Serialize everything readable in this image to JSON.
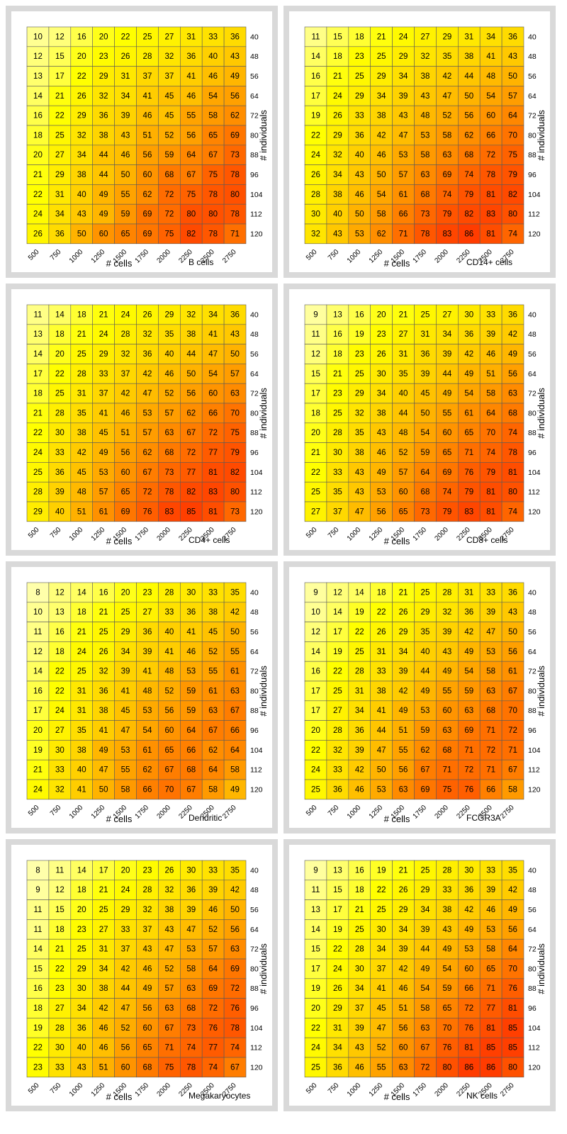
{
  "chart_data": [
    {
      "type": "heatmap",
      "title": "B cells",
      "xlabel": "# cells",
      "ylabel": "# individuals",
      "x": [
        500,
        750,
        1000,
        1250,
        1500,
        1750,
        2000,
        2250,
        2500,
        2750
      ],
      "y": [
        40,
        48,
        56,
        64,
        72,
        80,
        88,
        96,
        104,
        112,
        120
      ],
      "values": [
        [
          10,
          12,
          16,
          20,
          22,
          25,
          27,
          31,
          33,
          36
        ],
        [
          12,
          15,
          20,
          23,
          26,
          28,
          32,
          36,
          40,
          43
        ],
        [
          13,
          17,
          22,
          29,
          31,
          37,
          37,
          41,
          46,
          49
        ],
        [
          14,
          21,
          26,
          32,
          34,
          41,
          45,
          46,
          54,
          56
        ],
        [
          16,
          22,
          29,
          36,
          39,
          46,
          45,
          55,
          58,
          62
        ],
        [
          18,
          25,
          32,
          38,
          43,
          51,
          52,
          56,
          65,
          69
        ],
        [
          20,
          27,
          34,
          44,
          46,
          56,
          59,
          64,
          67,
          73
        ],
        [
          21,
          29,
          38,
          44,
          50,
          60,
          68,
          67,
          75,
          78
        ],
        [
          22,
          31,
          40,
          49,
          55,
          62,
          72,
          75,
          78,
          80
        ],
        [
          24,
          34,
          43,
          49,
          59,
          69,
          72,
          80,
          80,
          78
        ],
        [
          26,
          36,
          50,
          60,
          65,
          69,
          75,
          82,
          78,
          71
        ]
      ]
    },
    {
      "type": "heatmap",
      "title": "CD14+ cells",
      "xlabel": "# cells",
      "ylabel": "# individuals",
      "x": [
        500,
        750,
        1000,
        1250,
        1500,
        1750,
        2000,
        2250,
        2500,
        2750
      ],
      "y": [
        40,
        48,
        56,
        64,
        72,
        80,
        88,
        96,
        104,
        112,
        120
      ],
      "values": [
        [
          11,
          15,
          18,
          21,
          24,
          27,
          29,
          31,
          34,
          36
        ],
        [
          14,
          18,
          23,
          25,
          29,
          32,
          35,
          38,
          41,
          43
        ],
        [
          16,
          21,
          25,
          29,
          34,
          38,
          42,
          44,
          48,
          50
        ],
        [
          17,
          24,
          29,
          34,
          39,
          43,
          47,
          50,
          54,
          57
        ],
        [
          19,
          26,
          33,
          38,
          43,
          48,
          52,
          56,
          60,
          64
        ],
        [
          22,
          29,
          36,
          42,
          47,
          53,
          58,
          62,
          66,
          70
        ],
        [
          24,
          32,
          40,
          46,
          53,
          58,
          63,
          68,
          72,
          75
        ],
        [
          26,
          34,
          43,
          50,
          57,
          63,
          69,
          74,
          78,
          79
        ],
        [
          28,
          38,
          46,
          54,
          61,
          68,
          74,
          79,
          81,
          82
        ],
        [
          30,
          40,
          50,
          58,
          66,
          73,
          79,
          82,
          83,
          80
        ],
        [
          32,
          43,
          53,
          62,
          71,
          78,
          83,
          86,
          81,
          74
        ]
      ]
    },
    {
      "type": "heatmap",
      "title": "CD4+ cells",
      "xlabel": "# cells",
      "ylabel": "# individuals",
      "x": [
        500,
        750,
        1000,
        1250,
        1500,
        1750,
        2000,
        2250,
        2500,
        2750
      ],
      "y": [
        40,
        48,
        56,
        64,
        72,
        80,
        88,
        96,
        104,
        112,
        120
      ],
      "values": [
        [
          11,
          14,
          18,
          21,
          24,
          26,
          29,
          32,
          34,
          36
        ],
        [
          13,
          18,
          21,
          24,
          28,
          32,
          35,
          38,
          41,
          43
        ],
        [
          14,
          20,
          25,
          29,
          32,
          36,
          40,
          44,
          47,
          50
        ],
        [
          17,
          22,
          28,
          33,
          37,
          42,
          46,
          50,
          54,
          57
        ],
        [
          18,
          25,
          31,
          37,
          42,
          47,
          52,
          56,
          60,
          63
        ],
        [
          21,
          28,
          35,
          41,
          46,
          53,
          57,
          62,
          66,
          70
        ],
        [
          22,
          30,
          38,
          45,
          51,
          57,
          63,
          67,
          72,
          75
        ],
        [
          24,
          33,
          42,
          49,
          56,
          62,
          68,
          72,
          77,
          79
        ],
        [
          25,
          36,
          45,
          53,
          60,
          67,
          73,
          77,
          81,
          82
        ],
        [
          28,
          39,
          48,
          57,
          65,
          72,
          78,
          82,
          83,
          80
        ],
        [
          29,
          40,
          51,
          61,
          69,
          76,
          83,
          85,
          81,
          73
        ]
      ]
    },
    {
      "type": "heatmap",
      "title": "CD8+ cells",
      "xlabel": "# cells",
      "ylabel": "# individuals",
      "x": [
        500,
        750,
        1000,
        1250,
        1500,
        1750,
        2000,
        2250,
        2500,
        2750
      ],
      "y": [
        40,
        48,
        56,
        64,
        72,
        80,
        88,
        96,
        104,
        112,
        120
      ],
      "values": [
        [
          9,
          13,
          16,
          20,
          21,
          25,
          27,
          30,
          33,
          36
        ],
        [
          11,
          16,
          19,
          23,
          27,
          31,
          34,
          36,
          39,
          42
        ],
        [
          12,
          18,
          23,
          26,
          31,
          36,
          39,
          42,
          46,
          49
        ],
        [
          15,
          21,
          25,
          30,
          35,
          39,
          44,
          49,
          51,
          56
        ],
        [
          17,
          23,
          29,
          34,
          40,
          45,
          49,
          54,
          58,
          63
        ],
        [
          18,
          25,
          32,
          38,
          44,
          50,
          55,
          61,
          64,
          68
        ],
        [
          20,
          28,
          35,
          43,
          48,
          54,
          60,
          65,
          70,
          74
        ],
        [
          21,
          30,
          38,
          46,
          52,
          59,
          65,
          71,
          74,
          78
        ],
        [
          22,
          33,
          43,
          49,
          57,
          64,
          69,
          76,
          79,
          81
        ],
        [
          25,
          35,
          43,
          53,
          60,
          68,
          74,
          79,
          81,
          80
        ],
        [
          27,
          37,
          47,
          56,
          65,
          73,
          79,
          83,
          81,
          74
        ]
      ]
    },
    {
      "type": "heatmap",
      "title": "Dendritic",
      "xlabel": "# cells",
      "ylabel": "# individuals",
      "x": [
        500,
        750,
        1000,
        1250,
        1500,
        1750,
        2000,
        2250,
        2500,
        2750
      ],
      "y": [
        40,
        48,
        56,
        64,
        72,
        80,
        88,
        96,
        104,
        112,
        120
      ],
      "values": [
        [
          8,
          12,
          14,
          16,
          20,
          23,
          28,
          30,
          33,
          35
        ],
        [
          10,
          13,
          18,
          21,
          25,
          27,
          33,
          36,
          38,
          42
        ],
        [
          11,
          16,
          21,
          25,
          29,
          36,
          40,
          41,
          45,
          50
        ],
        [
          12,
          18,
          24,
          26,
          34,
          39,
          41,
          46,
          52,
          55
        ],
        [
          14,
          22,
          25,
          32,
          39,
          41,
          48,
          53,
          55,
          61
        ],
        [
          16,
          22,
          31,
          36,
          41,
          48,
          52,
          59,
          61,
          63
        ],
        [
          17,
          24,
          31,
          38,
          45,
          53,
          56,
          59,
          63,
          67
        ],
        [
          20,
          27,
          35,
          41,
          47,
          54,
          60,
          64,
          67,
          66
        ],
        [
          19,
          30,
          38,
          49,
          53,
          61,
          65,
          66,
          62,
          64
        ],
        [
          21,
          33,
          40,
          47,
          55,
          62,
          67,
          68,
          64,
          58
        ],
        [
          24,
          32,
          41,
          50,
          58,
          66,
          70,
          67,
          58,
          49
        ]
      ]
    },
    {
      "type": "heatmap",
      "title": "FCGR3A",
      "xlabel": "# cells",
      "ylabel": "# individuals",
      "x": [
        500,
        750,
        1000,
        1250,
        1500,
        1750,
        2000,
        2250,
        2500,
        2750
      ],
      "y": [
        40,
        48,
        56,
        64,
        72,
        80,
        88,
        96,
        104,
        112,
        120
      ],
      "values": [
        [
          9,
          12,
          14,
          18,
          21,
          25,
          28,
          31,
          33,
          36
        ],
        [
          10,
          14,
          19,
          22,
          26,
          29,
          32,
          36,
          39,
          43
        ],
        [
          12,
          17,
          22,
          26,
          29,
          35,
          39,
          42,
          47,
          50
        ],
        [
          14,
          19,
          25,
          31,
          34,
          40,
          43,
          49,
          53,
          56
        ],
        [
          16,
          22,
          28,
          33,
          39,
          44,
          49,
          54,
          58,
          61
        ],
        [
          17,
          25,
          31,
          38,
          42,
          49,
          55,
          59,
          63,
          67
        ],
        [
          17,
          27,
          34,
          41,
          49,
          53,
          60,
          63,
          68,
          70
        ],
        [
          20,
          28,
          36,
          44,
          51,
          59,
          63,
          69,
          71,
          72
        ],
        [
          22,
          32,
          39,
          47,
          55,
          62,
          68,
          71,
          72,
          71
        ],
        [
          24,
          33,
          42,
          50,
          56,
          67,
          71,
          72,
          71,
          67
        ],
        [
          25,
          36,
          46,
          53,
          63,
          69,
          75,
          76,
          66,
          58
        ]
      ]
    },
    {
      "type": "heatmap",
      "title": "Megakaryocytes",
      "xlabel": "# cells",
      "ylabel": "# individuals",
      "x": [
        500,
        750,
        1000,
        1250,
        1500,
        1750,
        2000,
        2250,
        2500,
        2750
      ],
      "y": [
        40,
        48,
        56,
        64,
        72,
        80,
        88,
        96,
        104,
        112,
        120
      ],
      "values": [
        [
          8,
          11,
          14,
          17,
          20,
          23,
          26,
          30,
          33,
          35
        ],
        [
          9,
          12,
          18,
          21,
          24,
          28,
          32,
          36,
          39,
          42
        ],
        [
          11,
          15,
          20,
          25,
          29,
          32,
          38,
          39,
          46,
          50
        ],
        [
          11,
          18,
          23,
          27,
          33,
          37,
          43,
          47,
          52,
          56
        ],
        [
          14,
          21,
          25,
          31,
          37,
          43,
          47,
          53,
          57,
          63
        ],
        [
          15,
          22,
          29,
          34,
          42,
          46,
          52,
          58,
          64,
          69
        ],
        [
          16,
          23,
          30,
          38,
          44,
          49,
          57,
          63,
          69,
          72
        ],
        [
          18,
          27,
          34,
          42,
          47,
          56,
          63,
          68,
          72,
          76
        ],
        [
          19,
          28,
          36,
          46,
          52,
          60,
          67,
          73,
          76,
          78
        ],
        [
          22,
          30,
          40,
          46,
          56,
          65,
          71,
          74,
          77,
          74
        ],
        [
          23,
          33,
          43,
          51,
          60,
          68,
          75,
          78,
          74,
          67
        ]
      ]
    },
    {
      "type": "heatmap",
      "title": "NK cells",
      "xlabel": "# cells",
      "ylabel": "# individuals",
      "x": [
        500,
        750,
        1000,
        1250,
        1500,
        1750,
        2000,
        2250,
        2500,
        2750
      ],
      "y": [
        40,
        48,
        56,
        64,
        72,
        80,
        88,
        96,
        104,
        112,
        120
      ],
      "values": [
        [
          9,
          13,
          16,
          19,
          21,
          25,
          28,
          30,
          33,
          35
        ],
        [
          11,
          15,
          18,
          22,
          26,
          29,
          33,
          36,
          39,
          42
        ],
        [
          13,
          17,
          21,
          25,
          29,
          34,
          38,
          42,
          46,
          49
        ],
        [
          14,
          19,
          25,
          30,
          34,
          39,
          43,
          49,
          53,
          56
        ],
        [
          15,
          22,
          28,
          34,
          39,
          44,
          49,
          53,
          58,
          64
        ],
        [
          17,
          24,
          30,
          37,
          42,
          49,
          54,
          60,
          65,
          70
        ],
        [
          19,
          26,
          34,
          41,
          46,
          54,
          59,
          66,
          71,
          76
        ],
        [
          20,
          29,
          37,
          45,
          51,
          58,
          65,
          72,
          77,
          81
        ],
        [
          22,
          31,
          39,
          47,
          56,
          63,
          70,
          76,
          81,
          85
        ],
        [
          24,
          34,
          43,
          52,
          60,
          67,
          76,
          81,
          85,
          85
        ],
        [
          25,
          36,
          46,
          55,
          63,
          72,
          80,
          86,
          86,
          80
        ]
      ]
    }
  ]
}
